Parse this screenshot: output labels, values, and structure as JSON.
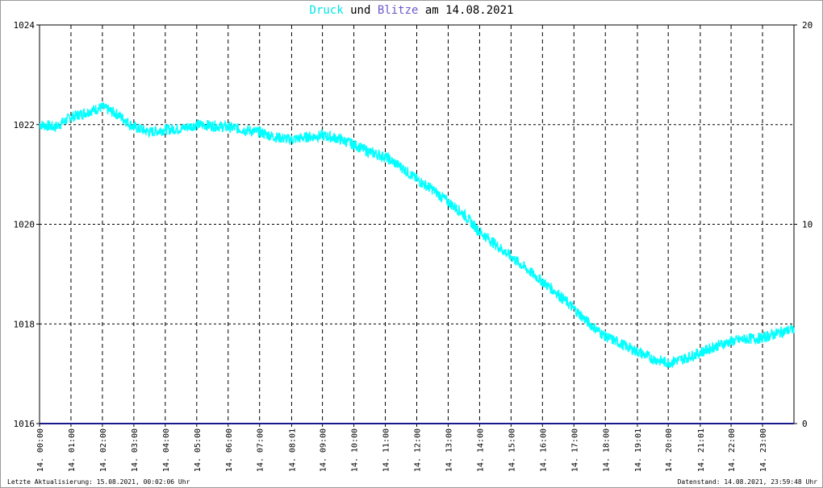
{
  "title": {
    "series1": "Druck",
    "mid": " und ",
    "series2": "Blitze",
    "suffix": " am 14.08.2021",
    "series1_color": "#00e5e5",
    "series2_color": "#6a5acd"
  },
  "footer": {
    "left": "Letzte Aktualisierung: 15.08.2021, 00:02:06 Uhr",
    "right": "Datenstand: 14.08.2021, 23:59:48 Uhr"
  },
  "chart_data": {
    "type": "line",
    "title": "Druck und Blitze am 14.08.2021",
    "grid": true,
    "y_left": {
      "range": [
        1016,
        1024
      ],
      "ticks": [
        "1024",
        "1022",
        "1020",
        "1018",
        "1016"
      ]
    },
    "y_right": {
      "range": [
        0,
        20
      ],
      "ticks": [
        "20",
        "10",
        "0"
      ]
    },
    "x_range_hours": [
      0,
      24
    ],
    "x_ticks": [
      {
        "h": 0.0,
        "label": "14. 00:00"
      },
      {
        "h": 1.0,
        "label": "14. 01:00"
      },
      {
        "h": 2.0,
        "label": "14. 02:00"
      },
      {
        "h": 3.0,
        "label": "14. 03:00"
      },
      {
        "h": 4.0,
        "label": "14. 04:00"
      },
      {
        "h": 5.0,
        "label": "14. 05:00"
      },
      {
        "h": 6.0,
        "label": "14. 06:00"
      },
      {
        "h": 7.0,
        "label": "14. 07:00"
      },
      {
        "h": 8.02,
        "label": "14. 08:01"
      },
      {
        "h": 9.0,
        "label": "14. 09:00"
      },
      {
        "h": 10.0,
        "label": "14. 10:00"
      },
      {
        "h": 11.0,
        "label": "14. 11:00"
      },
      {
        "h": 12.0,
        "label": "14. 12:00"
      },
      {
        "h": 13.0,
        "label": "14. 13:00"
      },
      {
        "h": 14.0,
        "label": "14. 14:00"
      },
      {
        "h": 15.0,
        "label": "14. 15:00"
      },
      {
        "h": 16.0,
        "label": "14. 16:00"
      },
      {
        "h": 17.0,
        "label": "14. 17:00"
      },
      {
        "h": 18.0,
        "label": "14. 18:00"
      },
      {
        "h": 19.02,
        "label": "14. 19:01"
      },
      {
        "h": 20.0,
        "label": "14. 20:00"
      },
      {
        "h": 21.02,
        "label": "14. 21:01"
      },
      {
        "h": 22.0,
        "label": "14. 22:00"
      },
      {
        "h": 23.0,
        "label": "14. 23:00"
      }
    ],
    "series": [
      {
        "name": "Druck",
        "color": "#00ffff",
        "x_hours": [
          0.0,
          0.5,
          1.0,
          1.5,
          2.0,
          2.5,
          3.0,
          3.5,
          4.0,
          4.5,
          5.0,
          5.5,
          6.0,
          6.5,
          7.0,
          7.5,
          8.0,
          8.5,
          9.0,
          9.5,
          10.0,
          10.5,
          11.0,
          11.5,
          12.0,
          12.5,
          13.0,
          13.5,
          14.0,
          14.5,
          15.0,
          15.5,
          16.0,
          16.5,
          17.0,
          17.5,
          18.0,
          18.5,
          19.0,
          19.5,
          20.0,
          20.5,
          21.0,
          21.5,
          22.0,
          22.5,
          23.0,
          23.5,
          24.0
        ],
        "values": [
          1022.0,
          1021.95,
          1022.15,
          1022.25,
          1022.35,
          1022.2,
          1021.95,
          1021.85,
          1021.9,
          1021.92,
          1022.0,
          1021.98,
          1021.95,
          1021.9,
          1021.85,
          1021.75,
          1021.7,
          1021.75,
          1021.78,
          1021.72,
          1021.6,
          1021.45,
          1021.35,
          1021.15,
          1020.9,
          1020.7,
          1020.45,
          1020.2,
          1019.85,
          1019.6,
          1019.35,
          1019.1,
          1018.85,
          1018.6,
          1018.3,
          1018.0,
          1017.75,
          1017.6,
          1017.45,
          1017.3,
          1017.22,
          1017.3,
          1017.42,
          1017.55,
          1017.65,
          1017.7,
          1017.72,
          1017.82,
          1017.9
        ]
      },
      {
        "name": "Blitze",
        "color": "#1a1a8c",
        "axis": "right",
        "x_hours": [
          0,
          24
        ],
        "values": [
          0,
          0
        ]
      }
    ]
  }
}
